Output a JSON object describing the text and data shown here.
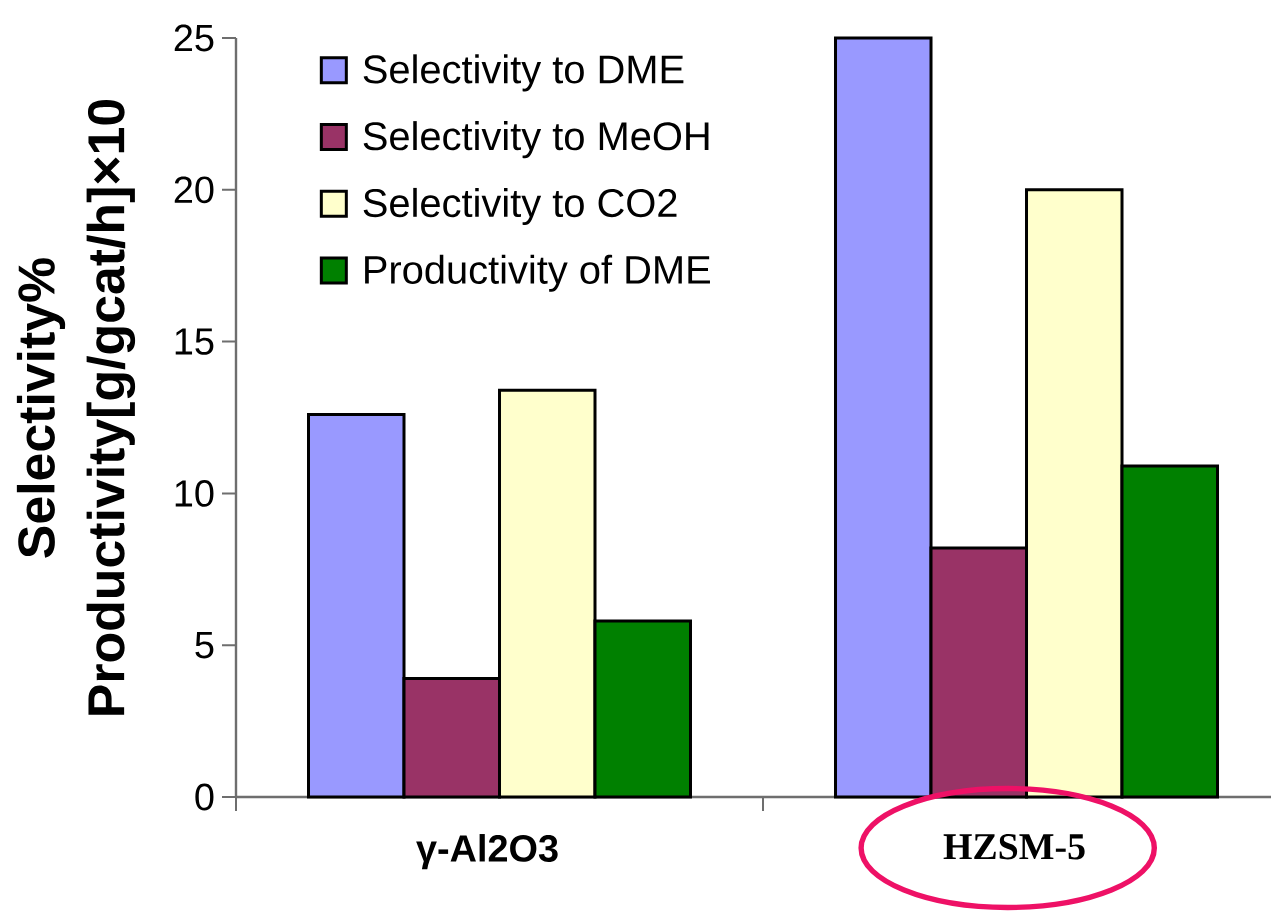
{
  "chart_data": {
    "type": "bar",
    "ylabel": "Selectivity% Productivity[g/gcat/h]×10",
    "categories": [
      "γ-Al2O3",
      "HZSM-5"
    ],
    "series": [
      {
        "name": "Selectivity to DME",
        "color": "#9999ff",
        "values": [
          12.6,
          25
        ]
      },
      {
        "name": "Selectivity to MeOH",
        "color": "#993366",
        "values": [
          3.9,
          8.2
        ]
      },
      {
        "name": "Selectivity to CO2",
        "color": "#ffffcc",
        "values": [
          13.4,
          20
        ]
      },
      {
        "name": "Productivity of DME",
        "color": "#008000",
        "values": [
          5.8,
          10.9
        ]
      }
    ],
    "ylim": [
      0,
      25
    ],
    "yticks": [
      0,
      5,
      10,
      15,
      20,
      25
    ],
    "legend": "top left"
  }
}
